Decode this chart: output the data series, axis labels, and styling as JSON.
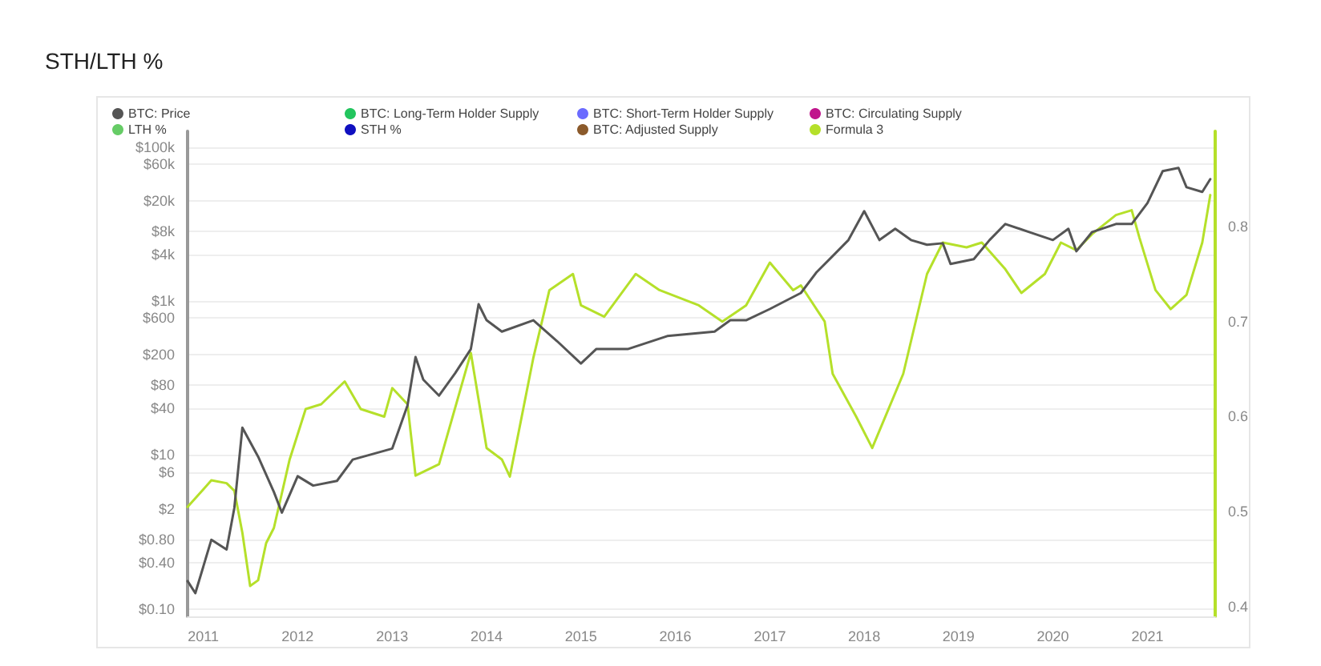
{
  "chart_data": {
    "type": "line",
    "title": "STH/LTH %",
    "legend": "top left",
    "grid": "y",
    "marker": "none",
    "line_style": "solid",
    "log": "y",
    "xlim": [
      "2010-11",
      "2021-09-20"
    ],
    "xticks": [
      "2011",
      "2012",
      "2013",
      "2014",
      "2015",
      "2016",
      "2017",
      "2018",
      "2019",
      "2020",
      "2021"
    ],
    "ylim": [
      0.08,
      160000
    ],
    "yticks": [
      {
        "value": 0.1,
        "label": "$0.10"
      },
      {
        "value": 0.4,
        "label": "$0.40"
      },
      {
        "value": 0.8,
        "label": "$0.80"
      },
      {
        "value": 2,
        "label": "$2"
      },
      {
        "value": 6,
        "label": "$6"
      },
      {
        "value": 10,
        "label": "$10"
      },
      {
        "value": 40,
        "label": "$40"
      },
      {
        "value": 80,
        "label": "$80"
      },
      {
        "value": 200,
        "label": "$200"
      },
      {
        "value": 600,
        "label": "$600"
      },
      {
        "value": 1000,
        "label": "$1k"
      },
      {
        "value": 4000,
        "label": "$4k"
      },
      {
        "value": 8000,
        "label": "$8k"
      },
      {
        "value": 20000,
        "label": "$20k"
      },
      {
        "value": 60000,
        "label": "$60k"
      },
      {
        "value": 100000,
        "label": "$100k"
      }
    ],
    "y2lim": [
      0.39,
      0.9
    ],
    "y2ticks": [
      0.4,
      0.5,
      0.6,
      0.7,
      0.8
    ],
    "series": [
      {
        "name": "BTC: Price",
        "color": "#555555",
        "x": [
          "2010-11",
          "2010-12",
          "2011-02",
          "2011-04",
          "2011-05",
          "2011-06",
          "2011-08",
          "2011-10",
          "2011-11",
          "2012-01",
          "2012-03",
          "2012-06",
          "2012-08",
          "2013-01",
          "2013-03",
          "2013-04",
          "2013-05",
          "2013-07",
          "2013-09",
          "2013-11",
          "2013-12",
          "2014-01",
          "2014-03",
          "2014-07",
          "2014-10",
          "2015-01",
          "2015-03",
          "2015-07",
          "2015-12",
          "2016-06",
          "2016-08",
          "2016-10",
          "2017-01",
          "2017-05",
          "2017-07",
          "2017-09",
          "2017-11",
          "2018-01",
          "2018-03",
          "2018-05",
          "2018-07",
          "2018-09",
          "2018-11",
          "2018-12",
          "2019-03",
          "2019-05",
          "2019-07",
          "2019-10",
          "2020-01",
          "2020-03",
          "2020-04",
          "2020-06",
          "2020-09",
          "2020-11",
          "2021-01",
          "2021-03",
          "2021-05",
          "2021-06",
          "2021-08",
          "2021-09"
        ],
        "values": [
          0.23,
          0.16,
          0.79,
          0.59,
          2.05,
          22.6,
          9.5,
          3.3,
          1.78,
          5.3,
          4.0,
          4.6,
          8.7,
          12.1,
          44,
          187,
          95,
          59,
          115,
          237,
          909,
          562,
          400,
          562,
          300,
          154,
          237,
          237,
          350,
          400,
          562,
          562,
          787,
          1270,
          2370,
          3830,
          6190,
          14690,
          6190,
          8660,
          6190,
          5370,
          5620,
          3020,
          3490,
          6190,
          10000,
          7870,
          6190,
          8660,
          4420,
          7870,
          10000,
          10000,
          18700,
          48600,
          53500,
          30000,
          26100,
          38300
        ]
      },
      {
        "name": "BTC: Long-Term Holder Supply",
        "color": "#22c55e"
      },
      {
        "name": "BTC: Short-Term Holder Supply",
        "color": "#6b6bff"
      },
      {
        "name": "BTC: Circulating Supply",
        "color": "#c0158c"
      },
      {
        "name": "LTH %",
        "color": "#66cc66"
      },
      {
        "name": "STH %",
        "color": "#1010c0"
      },
      {
        "name": "BTC: Adjusted Supply",
        "color": "#8b5a2b"
      },
      {
        "name": "Formula 3",
        "color": "#b5e02a",
        "axis": "y2",
        "x": [
          "2010-11",
          "2011-02",
          "2011-04",
          "2011-05",
          "2011-06",
          "2011-07",
          "2011-08",
          "2011-09",
          "2011-10",
          "2011-12",
          "2012-02",
          "2012-04",
          "2012-07",
          "2012-09",
          "2012-12",
          "2013-01",
          "2013-03",
          "2013-04",
          "2013-07",
          "2013-11",
          "2014-01",
          "2014-03",
          "2014-04",
          "2014-07",
          "2014-09",
          "2014-12",
          "2015-01",
          "2015-04",
          "2015-08",
          "2015-11",
          "2016-04",
          "2016-07",
          "2016-10",
          "2017-01",
          "2017-04",
          "2017-05",
          "2017-08",
          "2017-09",
          "2017-12",
          "2018-02",
          "2018-06",
          "2018-09",
          "2018-11",
          "2019-02",
          "2019-04",
          "2019-07",
          "2019-09",
          "2019-12",
          "2020-02",
          "2020-04",
          "2020-06",
          "2020-09",
          "2020-11",
          "2020-12",
          "2021-02",
          "2021-04",
          "2021-06",
          "2021-08",
          "2021-09"
        ],
        "values": [
          0.505,
          0.533,
          0.53,
          0.522,
          0.478,
          0.422,
          0.428,
          0.467,
          0.483,
          0.555,
          0.608,
          0.613,
          0.637,
          0.608,
          0.6,
          0.63,
          0.613,
          0.538,
          0.55,
          0.667,
          0.567,
          0.555,
          0.537,
          0.662,
          0.733,
          0.75,
          0.717,
          0.705,
          0.75,
          0.733,
          0.717,
          0.7,
          0.717,
          0.762,
          0.733,
          0.738,
          0.7,
          0.645,
          0.6,
          0.567,
          0.645,
          0.75,
          0.783,
          0.778,
          0.783,
          0.755,
          0.73,
          0.75,
          0.783,
          0.775,
          0.792,
          0.812,
          0.817,
          0.788,
          0.733,
          0.713,
          0.728,
          0.783,
          0.833
        ]
      }
    ]
  }
}
